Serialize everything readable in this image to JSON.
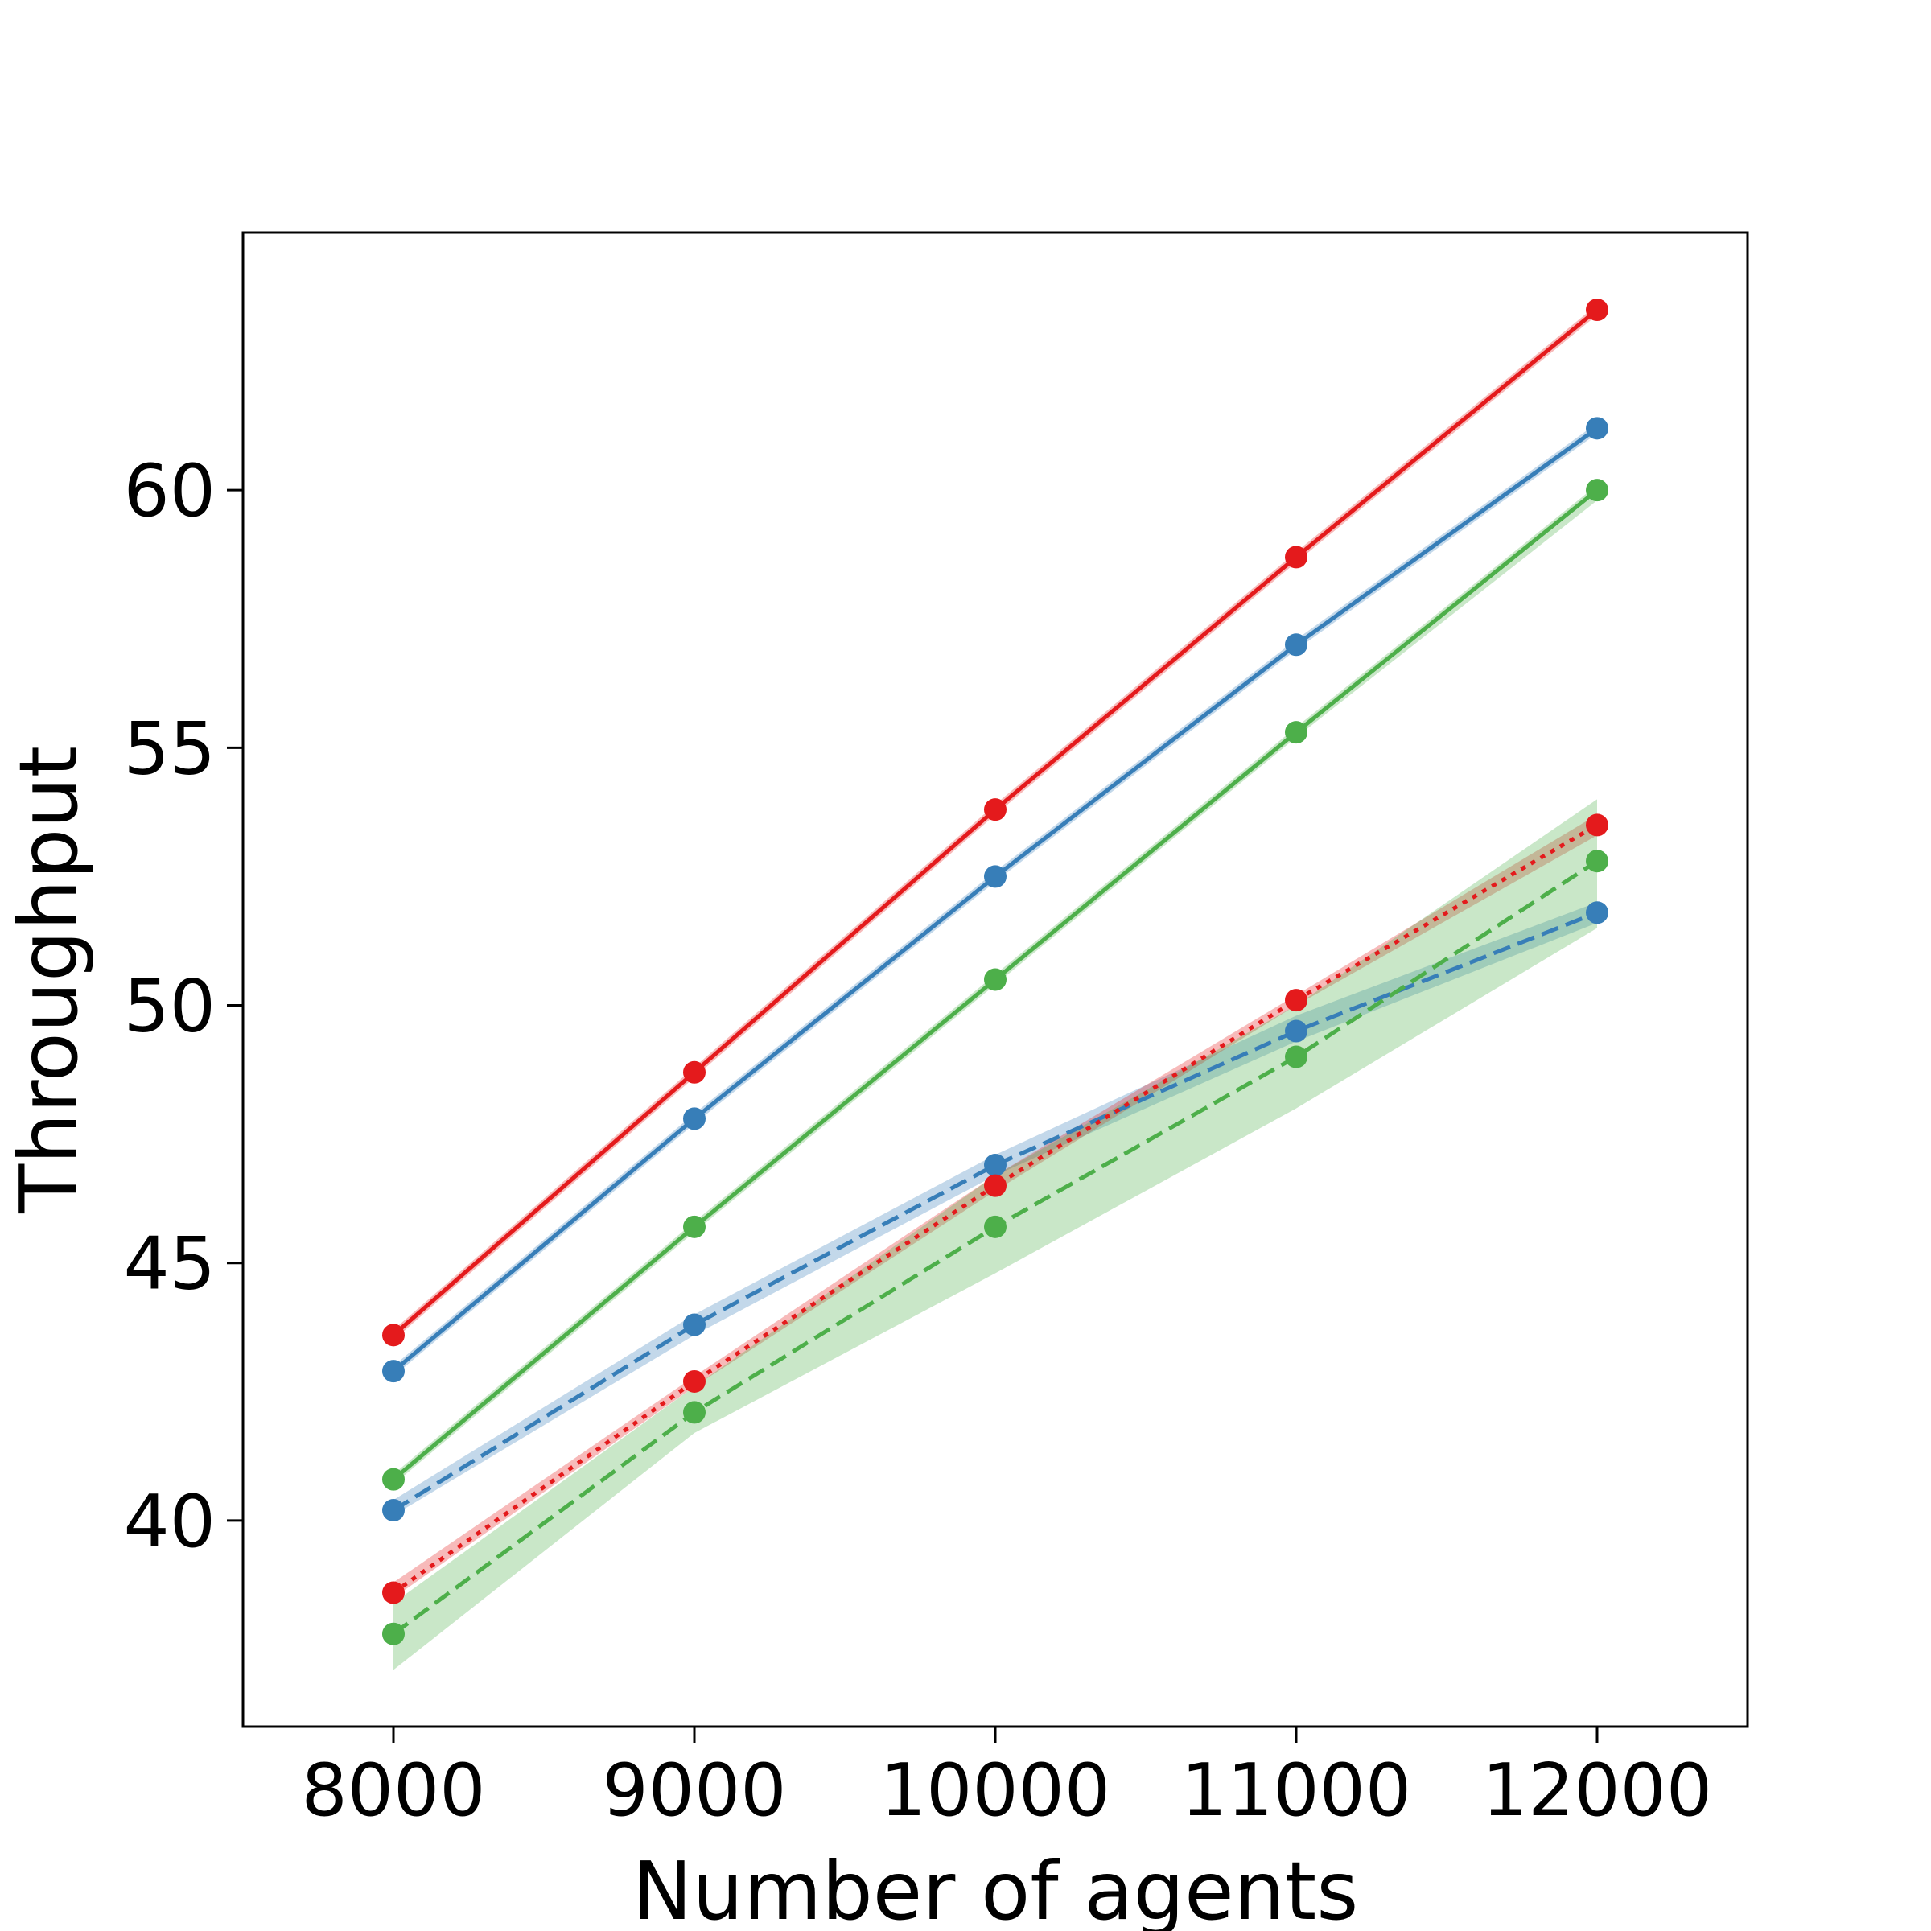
{
  "chart_data": {
    "type": "line",
    "xlabel": "Number of agents",
    "ylabel": "Throughput",
    "x": [
      8000,
      9000,
      10000,
      11000,
      12000
    ],
    "xlim": [
      7500,
      12500
    ],
    "ylim": [
      36.0,
      65.0
    ],
    "xticks": [
      "8000",
      "9000",
      "10000",
      "11000",
      "12000"
    ],
    "yticks": [
      "40",
      "45",
      "50",
      "55",
      "60"
    ],
    "grid": false,
    "legend": "none",
    "series": [
      {
        "color": "#e41a1c",
        "dash": "solid",
        "values": [
          43.6,
          48.7,
          53.8,
          58.7,
          63.5
        ],
        "lower": [
          43.5,
          48.6,
          53.7,
          58.6,
          63.4
        ],
        "upper": [
          43.7,
          48.8,
          53.9,
          58.8,
          63.6
        ]
      },
      {
        "color": "#377eb8",
        "dash": "solid",
        "values": [
          42.9,
          47.8,
          52.5,
          57.0,
          61.2
        ],
        "lower": [
          42.8,
          47.7,
          52.4,
          56.9,
          61.1
        ],
        "upper": [
          43.0,
          47.9,
          52.6,
          57.1,
          61.3
        ]
      },
      {
        "color": "#4daf4a",
        "dash": "solid",
        "values": [
          40.8,
          45.7,
          50.5,
          55.3,
          60.0
        ],
        "lower": [
          40.7,
          45.6,
          50.4,
          55.2,
          59.8
        ],
        "upper": [
          40.9,
          45.8,
          50.6,
          55.4,
          60.1
        ]
      },
      {
        "color": "#377eb8",
        "dash": "dashed",
        "values": [
          40.2,
          43.8,
          46.9,
          49.5,
          51.8
        ],
        "lower": [
          40.1,
          43.6,
          46.7,
          49.3,
          51.6
        ],
        "upper": [
          40.4,
          44.0,
          47.1,
          49.8,
          52.0
        ]
      },
      {
        "color": "#e41a1c",
        "dash": "dotted",
        "values": [
          38.6,
          42.7,
          46.5,
          50.1,
          53.5
        ],
        "lower": [
          38.5,
          42.6,
          46.4,
          50.0,
          53.3
        ],
        "upper": [
          38.8,
          42.8,
          46.7,
          50.2,
          53.7
        ]
      },
      {
        "color": "#4daf4a",
        "dash": "dashed",
        "values": [
          37.8,
          42.1,
          45.7,
          49.0,
          52.8
        ],
        "lower": [
          37.1,
          41.7,
          44.8,
          48.0,
          51.5
        ],
        "upper": [
          38.4,
          42.6,
          46.7,
          50.0,
          54.0
        ]
      }
    ]
  }
}
